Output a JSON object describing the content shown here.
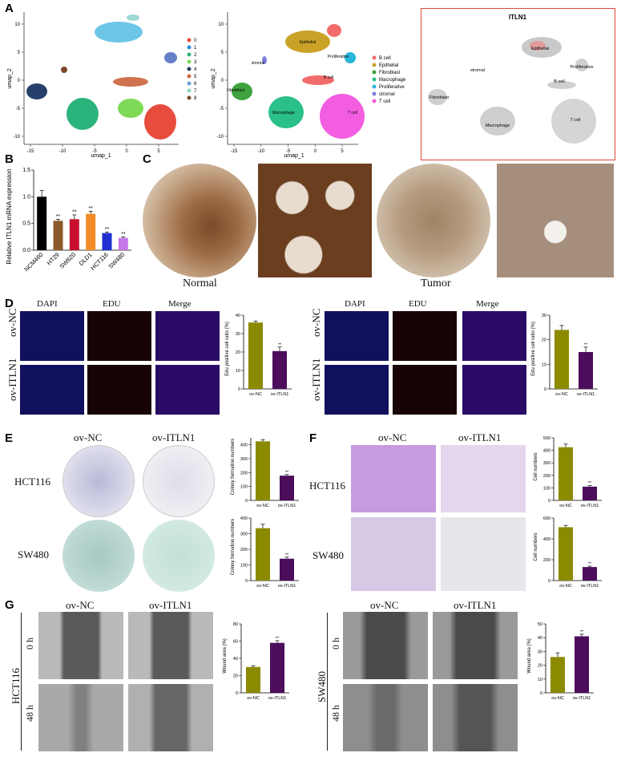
{
  "panels": {
    "A": {
      "letter": "A",
      "umap_clusters": {
        "xlabel": "umap_1",
        "ylabel": "umap_2",
        "xticks": [
          "-15",
          "-10",
          "-5",
          "0",
          "5"
        ],
        "yticks": [
          "10",
          "5",
          "0",
          "-5",
          "-10"
        ],
        "legend": [
          "0",
          "1",
          "2",
          "3",
          "4",
          "5",
          "6",
          "7",
          "8"
        ],
        "colors": [
          "#e84c3d",
          "#2e8fd8",
          "#2bb37c",
          "#7ed957",
          "#27406b",
          "#cf6b48",
          "#6ea0d8",
          "#8fd2c8",
          "#7a4a2a"
        ]
      },
      "umap_celltypes": {
        "xlabel": "umap_1",
        "ylabel": "umap_2",
        "xticks": [
          "-15",
          "-10",
          "-5",
          "0",
          "5"
        ],
        "yticks": [
          "10",
          "5",
          "0",
          "-5",
          "-10"
        ],
        "legend": [
          "B cell",
          "Epithelial",
          "Fibroblast",
          "Macrophage",
          "Proliferative",
          "stromal",
          "T cell"
        ],
        "colors": [
          "#f26b6b",
          "#c9a227",
          "#3ea33e",
          "#2bbf8a",
          "#29b6d9",
          "#8080e0",
          "#f35de0"
        ],
        "labels": [
          "Epithelial",
          "Proliferative",
          "stromal",
          "B cell",
          "Fibroblast",
          "Macrophage",
          "T cell"
        ]
      },
      "feature_plot": {
        "title": "ITLN1",
        "labels": [
          "Epithelial",
          "Proliferative",
          "stromal",
          "B cell",
          "Fibroblast",
          "Macrophage",
          "T cell"
        ]
      }
    },
    "B": {
      "letter": "B",
      "chart_data": {
        "type": "bar",
        "ylabel": "Relative ITLN1 mRNA expression",
        "categories": [
          "NCM460",
          "HT29",
          "SW620",
          "DLD1",
          "HCT116",
          "SW480"
        ],
        "values": [
          1.0,
          0.55,
          0.58,
          0.68,
          0.32,
          0.23
        ],
        "errors": [
          0.12,
          0.03,
          0.08,
          0.05,
          0.02,
          0.02
        ],
        "sig": [
          "",
          "**",
          "**",
          "**",
          "**",
          "**"
        ],
        "yticks": [
          "0.0",
          "0.5",
          "1.0",
          "1.5"
        ],
        "ylim": [
          0,
          1.5
        ],
        "colors": [
          "#000000",
          "#8b5a2b",
          "#c8102e",
          "#f28c28",
          "#1f2fd0",
          "#c678e8"
        ]
      }
    },
    "C": {
      "letter": "C",
      "normal_label": "Normal",
      "tumor_label": "Tumor"
    },
    "D": {
      "letter": "D",
      "col_headers": [
        "DAPI",
        "EDU",
        "Merge"
      ],
      "row_labels": [
        "ov-NC",
        "ov-ITLN1"
      ],
      "charts": [
        {
          "type": "bar",
          "ylabel": "Edu positive cell ratio (%)",
          "categories": [
            "ov-NC",
            "ov-ITLN1"
          ],
          "values": [
            36,
            20.5
          ],
          "errors": [
            0.8,
            2.2
          ],
          "sig": [
            "",
            "**"
          ],
          "yticks": [
            "0",
            "10",
            "20",
            "30",
            "40"
          ],
          "ylim": [
            0,
            40
          ]
        },
        {
          "type": "bar",
          "ylabel": "Edu positive cell ratio (%)",
          "categories": [
            "ov-NC",
            "ov-ITLN1"
          ],
          "values": [
            24,
            15
          ],
          "errors": [
            1.8,
            2.0
          ],
          "sig": [
            "",
            "**"
          ],
          "yticks": [
            "0",
            "10",
            "20",
            "30"
          ],
          "ylim": [
            0,
            30
          ]
        }
      ]
    },
    "E": {
      "letter": "E",
      "col_headers": [
        "ov-NC",
        "ov-ITLN1"
      ],
      "row_labels": [
        "HCT116",
        "SW480"
      ],
      "charts": [
        {
          "type": "bar",
          "ylabel": "Colony formation numbers",
          "categories": [
            "ov-NC",
            "ov-ITLN1"
          ],
          "values": [
            425,
            178
          ],
          "errors": [
            12,
            8
          ],
          "sig": [
            "",
            "**"
          ],
          "yticks": [
            "0",
            "100",
            "200",
            "300",
            "400"
          ],
          "ylim": [
            0,
            450
          ]
        },
        {
          "type": "bar",
          "ylabel": "Colony formation numbers",
          "categories": [
            "ov-NC",
            "ov-ITLN1"
          ],
          "values": [
            335,
            140
          ],
          "errors": [
            25,
            10
          ],
          "sig": [
            "",
            "**"
          ],
          "yticks": [
            "0",
            "100",
            "200",
            "300",
            "400"
          ],
          "ylim": [
            0,
            400
          ]
        }
      ]
    },
    "F": {
      "letter": "F",
      "col_headers": [
        "ov-NC",
        "ov-ITLN1"
      ],
      "row_labels": [
        "HCT116",
        "SW480"
      ],
      "charts": [
        {
          "type": "bar",
          "ylabel": "Cell numbers",
          "categories": [
            "ov-NC",
            "ov-ITLN1"
          ],
          "values": [
            425,
            110
          ],
          "errors": [
            25,
            8
          ],
          "sig": [
            "",
            "**"
          ],
          "yticks": [
            "0",
            "100",
            "200",
            "300",
            "400",
            "500"
          ],
          "ylim": [
            0,
            500
          ]
        },
        {
          "type": "bar",
          "ylabel": "Cell numbers",
          "categories": [
            "ov-NC",
            "ov-ITLN1"
          ],
          "values": [
            512,
            130
          ],
          "errors": [
            18,
            8
          ],
          "sig": [
            "",
            "**"
          ],
          "yticks": [
            "0",
            "200",
            "400",
            "600"
          ],
          "ylim": [
            0,
            600
          ]
        }
      ]
    },
    "G": {
      "letter": "G",
      "col_headers": [
        "ov-NC",
        "ov-ITLN1"
      ],
      "time_labels": [
        "0 h",
        "48 h"
      ],
      "cell_lines": [
        "HCT116",
        "SW480"
      ],
      "charts": [
        {
          "type": "bar",
          "ylabel": "Wound area (%)",
          "categories": [
            "ov-NC",
            "ov-ITLN1"
          ],
          "values": [
            30,
            58
          ],
          "errors": [
            1.5,
            2.5
          ],
          "sig": [
            "",
            "**"
          ],
          "yticks": [
            "0",
            "20",
            "40",
            "60",
            "80"
          ],
          "ylim": [
            0,
            80
          ]
        },
        {
          "type": "bar",
          "ylabel": "Wound area (%)",
          "categories": [
            "ov-NC",
            "ov-ITLN1"
          ],
          "values": [
            26,
            41
          ],
          "errors": [
            3,
            1.5
          ],
          "sig": [
            "",
            "**"
          ],
          "yticks": [
            "0",
            "10",
            "20",
            "30",
            "40",
            "50"
          ],
          "ylim": [
            0,
            50
          ]
        }
      ]
    }
  },
  "bar_colors": {
    "nc": "#8b8a00",
    "itln1": "#4b0d5c"
  }
}
